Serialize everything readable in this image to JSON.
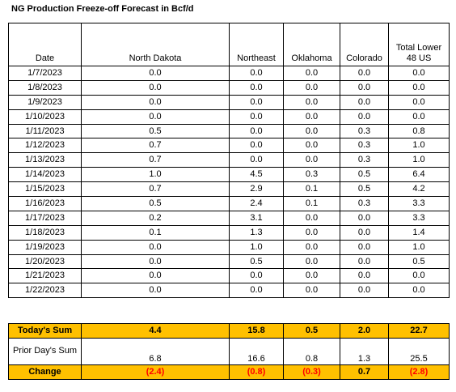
{
  "title": "NG Production Freeze-off Forecast in Bcf/d",
  "table": {
    "header": [
      "Date",
      "North Dakota",
      "Northeast",
      "Oklahoma",
      "Colorado",
      "Total Lower 48 US"
    ],
    "rows": [
      [
        "1/7/2023",
        "0.0",
        "0.0",
        "0.0",
        "0.0",
        "0.0"
      ],
      [
        "1/8/2023",
        "0.0",
        "0.0",
        "0.0",
        "0.0",
        "0.0"
      ],
      [
        "1/9/2023",
        "0.0",
        "0.0",
        "0.0",
        "0.0",
        "0.0"
      ],
      [
        "1/10/2023",
        "0.0",
        "0.0",
        "0.0",
        "0.0",
        "0.0"
      ],
      [
        "1/11/2023",
        "0.5",
        "0.0",
        "0.0",
        "0.3",
        "0.8"
      ],
      [
        "1/12/2023",
        "0.7",
        "0.0",
        "0.0",
        "0.3",
        "1.0"
      ],
      [
        "1/13/2023",
        "0.7",
        "0.0",
        "0.0",
        "0.3",
        "1.0"
      ],
      [
        "1/14/2023",
        "1.0",
        "4.5",
        "0.3",
        "0.5",
        "6.4"
      ],
      [
        "1/15/2023",
        "0.7",
        "2.9",
        "0.1",
        "0.5",
        "4.2"
      ],
      [
        "1/16/2023",
        "0.5",
        "2.4",
        "0.1",
        "0.3",
        "3.3"
      ],
      [
        "1/17/2023",
        "0.2",
        "3.1",
        "0.0",
        "0.0",
        "3.3"
      ],
      [
        "1/18/2023",
        "0.1",
        "1.3",
        "0.0",
        "0.0",
        "1.4"
      ],
      [
        "1/19/2023",
        "0.0",
        "1.0",
        "0.0",
        "0.0",
        "1.0"
      ],
      [
        "1/20/2023",
        "0.0",
        "0.5",
        "0.0",
        "0.0",
        "0.5"
      ],
      [
        "1/21/2023",
        "0.0",
        "0.0",
        "0.0",
        "0.0",
        "0.0"
      ],
      [
        "1/22/2023",
        "0.0",
        "0.0",
        "0.0",
        "0.0",
        "0.0"
      ]
    ]
  },
  "summary": {
    "rows": [
      [
        "Today's Sum",
        "4.4",
        "15.8",
        "0.5",
        "2.0",
        "22.7"
      ],
      [
        "Prior Day's Sum",
        "6.8",
        "16.6",
        "0.8",
        "1.3",
        "25.5"
      ],
      [
        "Change",
        "(2.4)",
        "(0.8)",
        "(0.3)",
        "0.7",
        "(2.8)"
      ]
    ]
  }
}
